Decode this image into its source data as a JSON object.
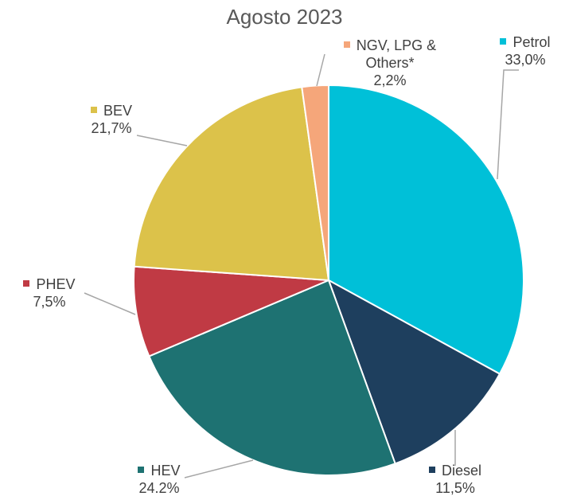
{
  "chart_data": {
    "type": "pie",
    "title": "Agosto 2023",
    "categories": [
      "Petrol",
      "Diesel",
      "HEV",
      "PHEV",
      "BEV",
      "NGV, LPG & Others*"
    ],
    "values": [
      33.0,
      11.5,
      24.2,
      7.5,
      21.7,
      2.2
    ],
    "value_labels": [
      "33,0%",
      "11,5%",
      "24.2%",
      "7,5%",
      "21,7%",
      "2,2%"
    ],
    "colors": [
      "#00c0d8",
      "#1e3f5e",
      "#1e7272",
      "#c03a44",
      "#dcc24a",
      "#f5a67a"
    ]
  }
}
